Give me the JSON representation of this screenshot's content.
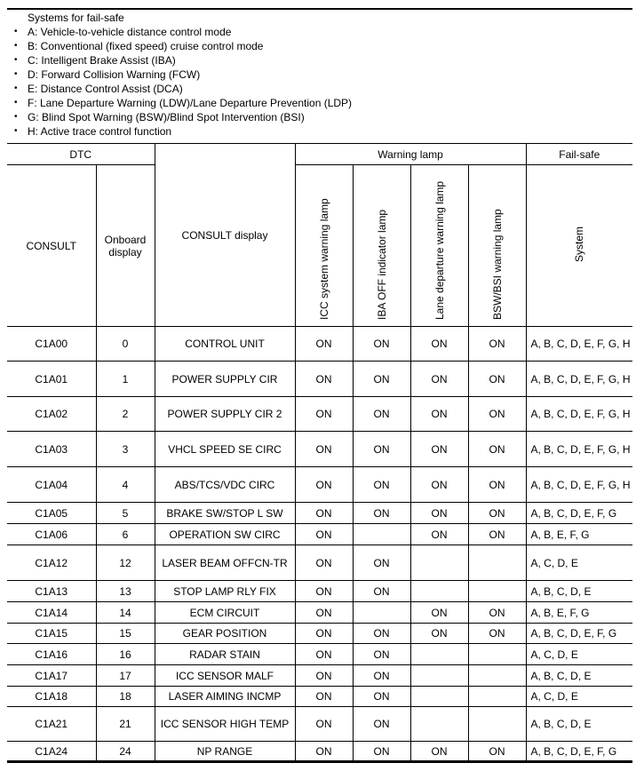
{
  "notes": {
    "title": "Systems for fail-safe",
    "items": [
      "A: Vehicle-to-vehicle distance control mode",
      "B: Conventional (fixed speed) cruise control mode",
      "C: Intelligent Brake Assist (IBA)",
      "D: Forward Collision Warning (FCW)",
      "E: Distance Control Assist (DCA)",
      "F: Lane Departure Warning (LDW)/Lane Departure Prevention (LDP)",
      "G: Blind Spot Warning (BSW)/Blind Spot Intervention (BSI)",
      "H: Active trace control function"
    ]
  },
  "table": {
    "headers": {
      "dtc": "DTC",
      "consult": "CONSULT",
      "onboard": "Onboard display",
      "consult_display": "CONSULT display",
      "warning_lamp": "Warning lamp",
      "icc": "ICC system warning lamp",
      "iba": "IBA OFF indicator lamp",
      "lane": "Lane departure warning lamp",
      "bsw": "BSW/BSI warning lamp",
      "failsafe": "Fail-safe",
      "system": "System"
    },
    "rows": [
      [
        "C1A00",
        "0",
        "CONTROL UNIT",
        "ON",
        "ON",
        "ON",
        "ON",
        "A, B, C, D, E, F, G, H"
      ],
      [
        "C1A01",
        "1",
        "POWER SUPPLY CIR",
        "ON",
        "ON",
        "ON",
        "ON",
        "A, B, C, D, E, F, G, H"
      ],
      [
        "C1A02",
        "2",
        "POWER SUPPLY CIR 2",
        "ON",
        "ON",
        "ON",
        "ON",
        "A, B, C, D, E, F, G, H"
      ],
      [
        "C1A03",
        "3",
        "VHCL SPEED SE CIRC",
        "ON",
        "ON",
        "ON",
        "ON",
        "A, B, C, D, E, F, G, H"
      ],
      [
        "C1A04",
        "4",
        "ABS/TCS/VDC CIRC",
        "ON",
        "ON",
        "ON",
        "ON",
        "A, B, C, D, E, F, G, H"
      ],
      [
        "C1A05",
        "5",
        "BRAKE SW/STOP L SW",
        "ON",
        "ON",
        "ON",
        "ON",
        "A, B, C, D, E, F, G"
      ],
      [
        "C1A06",
        "6",
        "OPERATION SW CIRC",
        "ON",
        "",
        "ON",
        "ON",
        "A, B, E, F, G"
      ],
      [
        "C1A12",
        "12",
        "LASER BEAM OFFCN-TR",
        "ON",
        "ON",
        "",
        "",
        "A, C, D, E"
      ],
      [
        "C1A13",
        "13",
        "STOP LAMP RLY FIX",
        "ON",
        "ON",
        "",
        "",
        "A, B, C, D, E"
      ],
      [
        "C1A14",
        "14",
        "ECM CIRCUIT",
        "ON",
        "",
        "ON",
        "ON",
        "A, B, E, F, G"
      ],
      [
        "C1A15",
        "15",
        "GEAR POSITION",
        "ON",
        "ON",
        "ON",
        "ON",
        "A, B, C, D, E, F, G"
      ],
      [
        "C1A16",
        "16",
        "RADAR STAIN",
        "ON",
        "ON",
        "",
        "",
        "A, C, D, E"
      ],
      [
        "C1A17",
        "17",
        "ICC SENSOR MALF",
        "ON",
        "ON",
        "",
        "",
        "A, B, C, D, E"
      ],
      [
        "C1A18",
        "18",
        "LASER AIMING INCMP",
        "ON",
        "ON",
        "",
        "",
        "A, C, D, E"
      ],
      [
        "C1A21",
        "21",
        "ICC SENSOR HIGH TEMP",
        "ON",
        "ON",
        "",
        "",
        "A, B, C, D, E"
      ],
      [
        "C1A24",
        "24",
        "NP RANGE",
        "ON",
        "ON",
        "ON",
        "ON",
        "A, B, C, D, E, F, G"
      ]
    ]
  }
}
